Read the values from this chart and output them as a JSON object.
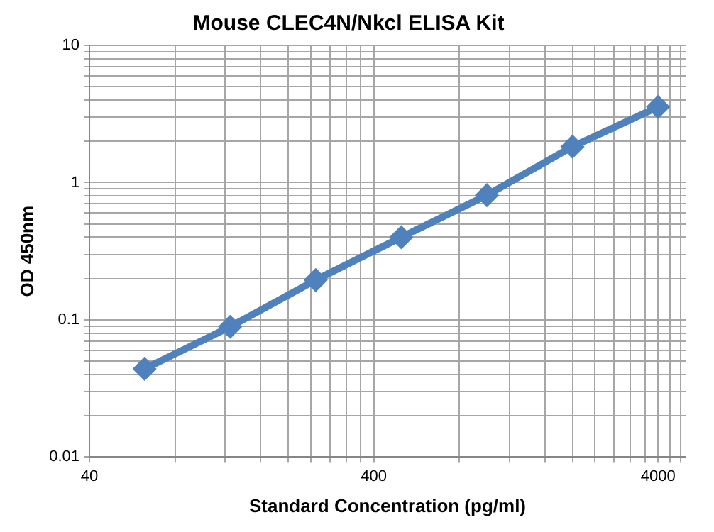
{
  "chart_data": {
    "type": "line",
    "title": "Mouse CLEC4N/Nkcl ELISA Kit",
    "xlabel": "Standard Concentration (pg/ml)",
    "ylabel": "OD 450nm",
    "x": [
      62.5,
      125,
      250,
      500,
      1000,
      2000,
      4000
    ],
    "series": [
      {
        "color": "#4f81bd",
        "values": [
          0.044,
          0.089,
          0.195,
          0.4,
          0.81,
          1.83,
          3.56
        ]
      }
    ],
    "log": "xy",
    "grid": true,
    "legend": false,
    "marker": "diamond",
    "line_style": "solid",
    "xlim": [
      40,
      5000
    ],
    "xticks": [
      40,
      {
        "value": 80,
        "label": null
      },
      {
        "value": 120,
        "label": null
      },
      {
        "value": 160,
        "label": null
      },
      {
        "value": 200,
        "label": null
      },
      {
        "value": 240,
        "label": null
      },
      {
        "value": 280,
        "label": null
      },
      {
        "value": 320,
        "label": null
      },
      {
        "value": 360,
        "label": null
      },
      400,
      {
        "value": 800,
        "label": null
      },
      {
        "value": 1200,
        "label": null
      },
      {
        "value": 1600,
        "label": null
      },
      {
        "value": 2000,
        "label": null
      },
      {
        "value": 2400,
        "label": null
      },
      {
        "value": 2800,
        "label": null
      },
      {
        "value": 3200,
        "label": null
      },
      {
        "value": 3600,
        "label": null
      },
      4000,
      {
        "value": 4400,
        "label": null
      },
      {
        "value": 4800,
        "label": null
      }
    ],
    "ylim": [
      0.01,
      10
    ],
    "yticks": [
      0.01,
      {
        "value": 0.02,
        "label": null
      },
      {
        "value": 0.03,
        "label": null
      },
      {
        "value": 0.04,
        "label": null
      },
      {
        "value": 0.05,
        "label": null
      },
      {
        "value": 0.06,
        "label": null
      },
      {
        "value": 0.07,
        "label": null
      },
      {
        "value": 0.08,
        "label": null
      },
      {
        "value": 0.09,
        "label": null
      },
      0.1,
      {
        "value": 0.2,
        "label": null
      },
      {
        "value": 0.3,
        "label": null
      },
      {
        "value": 0.4,
        "label": null
      },
      {
        "value": 0.5,
        "label": null
      },
      {
        "value": 0.6,
        "label": null
      },
      {
        "value": 0.7,
        "label": null
      },
      {
        "value": 0.8,
        "label": null
      },
      {
        "value": 0.9,
        "label": null
      },
      1,
      {
        "value": 2,
        "label": null
      },
      {
        "value": 3,
        "label": null
      },
      {
        "value": 4,
        "label": null
      },
      {
        "value": 5,
        "label": null
      },
      {
        "value": 6,
        "label": null
      },
      {
        "value": 7,
        "label": null
      },
      {
        "value": 8,
        "label": null
      },
      {
        "value": 9,
        "label": null
      },
      10
    ]
  }
}
